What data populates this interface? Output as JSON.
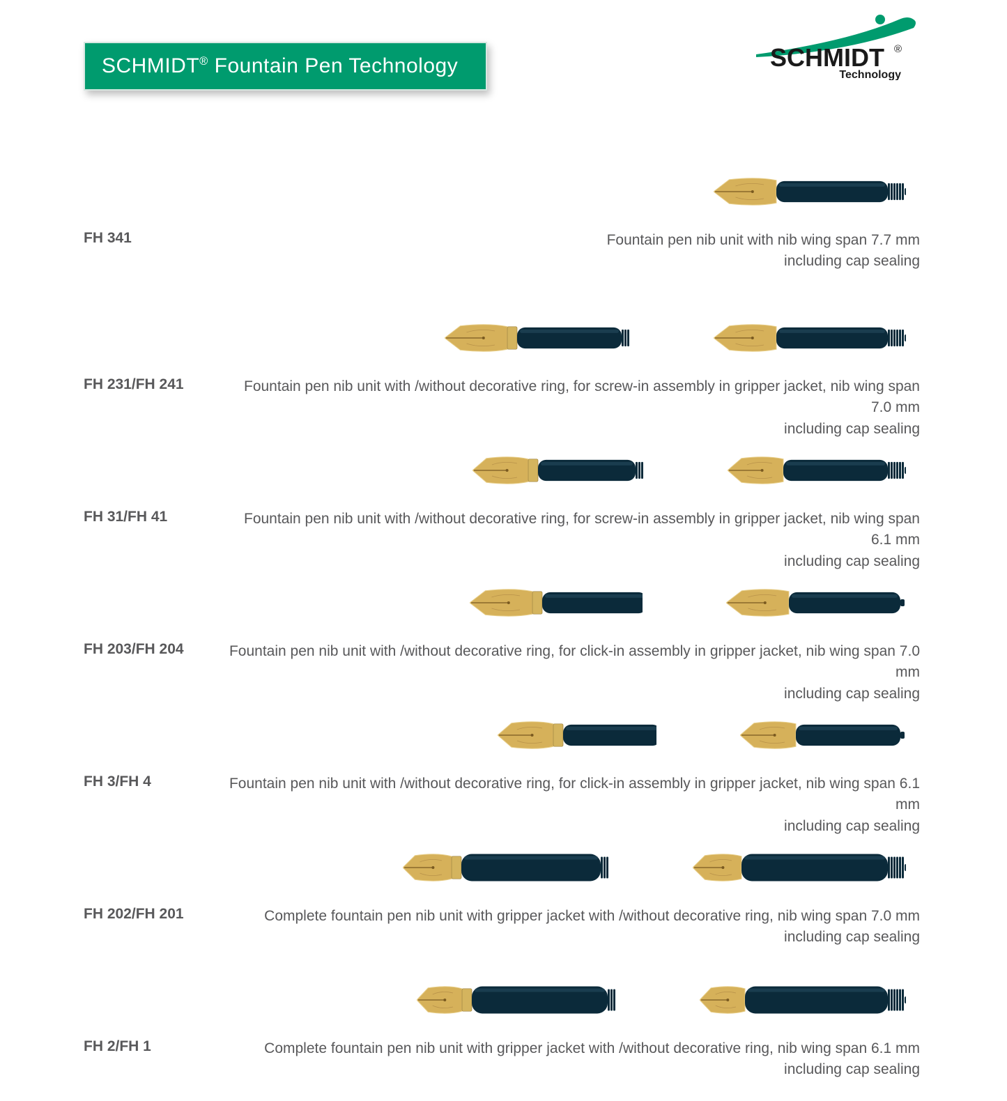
{
  "header": {
    "banner_html": "SCHMIDT<sup>®</sup> Fountain Pen Technology",
    "logo_brand": "SCHMIDT",
    "logo_reg": "®",
    "logo_sub": "Technology"
  },
  "colors": {
    "banner_bg": "#009b6e",
    "banner_text": "#ffffff",
    "body_text": "#58585a",
    "logo_swoosh": "#009b6e",
    "nib_gold": "#d6b15a",
    "nib_gold_light": "#e8cf8a",
    "nib_barrel": "#0b2a3a",
    "nib_ring": "#d4b45e"
  },
  "nib_shapes": {
    "screw_single": {
      "nib_w": 90,
      "barrel_w": 160,
      "ring": false,
      "thread": true,
      "jacket": false
    },
    "screw_ring": {
      "nib_w": 90,
      "barrel_w": 150,
      "ring": true,
      "thread": true,
      "jacket": false
    },
    "screw_plain": {
      "nib_w": 90,
      "barrel_w": 160,
      "ring": false,
      "thread": true,
      "jacket": false
    },
    "screw_ring_s": {
      "nib_w": 80,
      "barrel_w": 140,
      "ring": true,
      "thread": true,
      "jacket": false
    },
    "screw_plain_s": {
      "nib_w": 80,
      "barrel_w": 150,
      "ring": false,
      "thread": true,
      "jacket": false
    },
    "click_ring": {
      "nib_w": 90,
      "barrel_w": 150,
      "ring": true,
      "thread": false,
      "jacket": false
    },
    "click_plain": {
      "nib_w": 90,
      "barrel_w": 160,
      "ring": false,
      "thread": false,
      "jacket": false
    },
    "click_ring_s": {
      "nib_w": 80,
      "barrel_w": 140,
      "ring": true,
      "thread": false,
      "jacket": false
    },
    "click_plain_s": {
      "nib_w": 80,
      "barrel_w": 150,
      "ring": false,
      "thread": false,
      "jacket": false
    },
    "jacket_ring": {
      "nib_w": 70,
      "barrel_w": 200,
      "ring": true,
      "thread": true,
      "jacket": true
    },
    "jacket_plain": {
      "nib_w": 70,
      "barrel_w": 210,
      "ring": false,
      "thread": true,
      "jacket": true
    },
    "jacket_ring_s": {
      "nib_w": 65,
      "barrel_w": 195,
      "ring": true,
      "thread": true,
      "jacket": true
    },
    "jacket_plain_s": {
      "nib_w": 65,
      "barrel_w": 205,
      "ring": false,
      "thread": true,
      "jacket": true
    }
  },
  "products": [
    {
      "code": "FH 341",
      "desc": "Fountain pen nib unit with nib wing span 7.7 mm<br>including cap sealing",
      "images": [
        "screw_single"
      ],
      "first": true
    },
    {
      "code": "FH 231/FH 241",
      "desc": "Fountain pen nib unit with /without decorative ring, for screw-in assembly in gripper jacket, nib wing span 7.0 mm<br>including cap sealing",
      "images": [
        "screw_ring",
        "screw_plain"
      ]
    },
    {
      "code": "FH 31/FH 41",
      "desc": "Fountain pen nib unit with /without decorative ring, for screw-in assembly in gripper jacket, nib wing span 6.1 mm<br>including cap sealing",
      "images": [
        "screw_ring_s",
        "screw_plain_s"
      ]
    },
    {
      "code": "FH 203/FH 204",
      "desc": "Fountain pen nib unit with /without decorative ring, for click-in assembly in gripper jacket, nib wing span 7.0 mm<br>including cap sealing",
      "images": [
        "click_ring",
        "click_plain"
      ]
    },
    {
      "code": "FH 3/FH 4",
      "desc": "Fountain pen nib unit with /without decorative ring, for click-in assembly in gripper jacket, nib wing span 6.1 mm<br>including cap sealing",
      "images": [
        "click_ring_s",
        "click_plain_s"
      ]
    },
    {
      "code": "FH 202/FH 201",
      "desc": "Complete fountain pen nib unit with gripper jacket with /without decorative ring, nib wing span 7.0 mm<br>including cap sealing",
      "images": [
        "jacket_ring",
        "jacket_plain"
      ]
    },
    {
      "code": "FH 2/FH 1",
      "desc": "Complete fountain pen nib unit with gripper jacket with /without decorative ring, nib wing span 6.1 mm<br>including cap sealing",
      "images": [
        "jacket_ring_s",
        "jacket_plain_s"
      ]
    }
  ]
}
